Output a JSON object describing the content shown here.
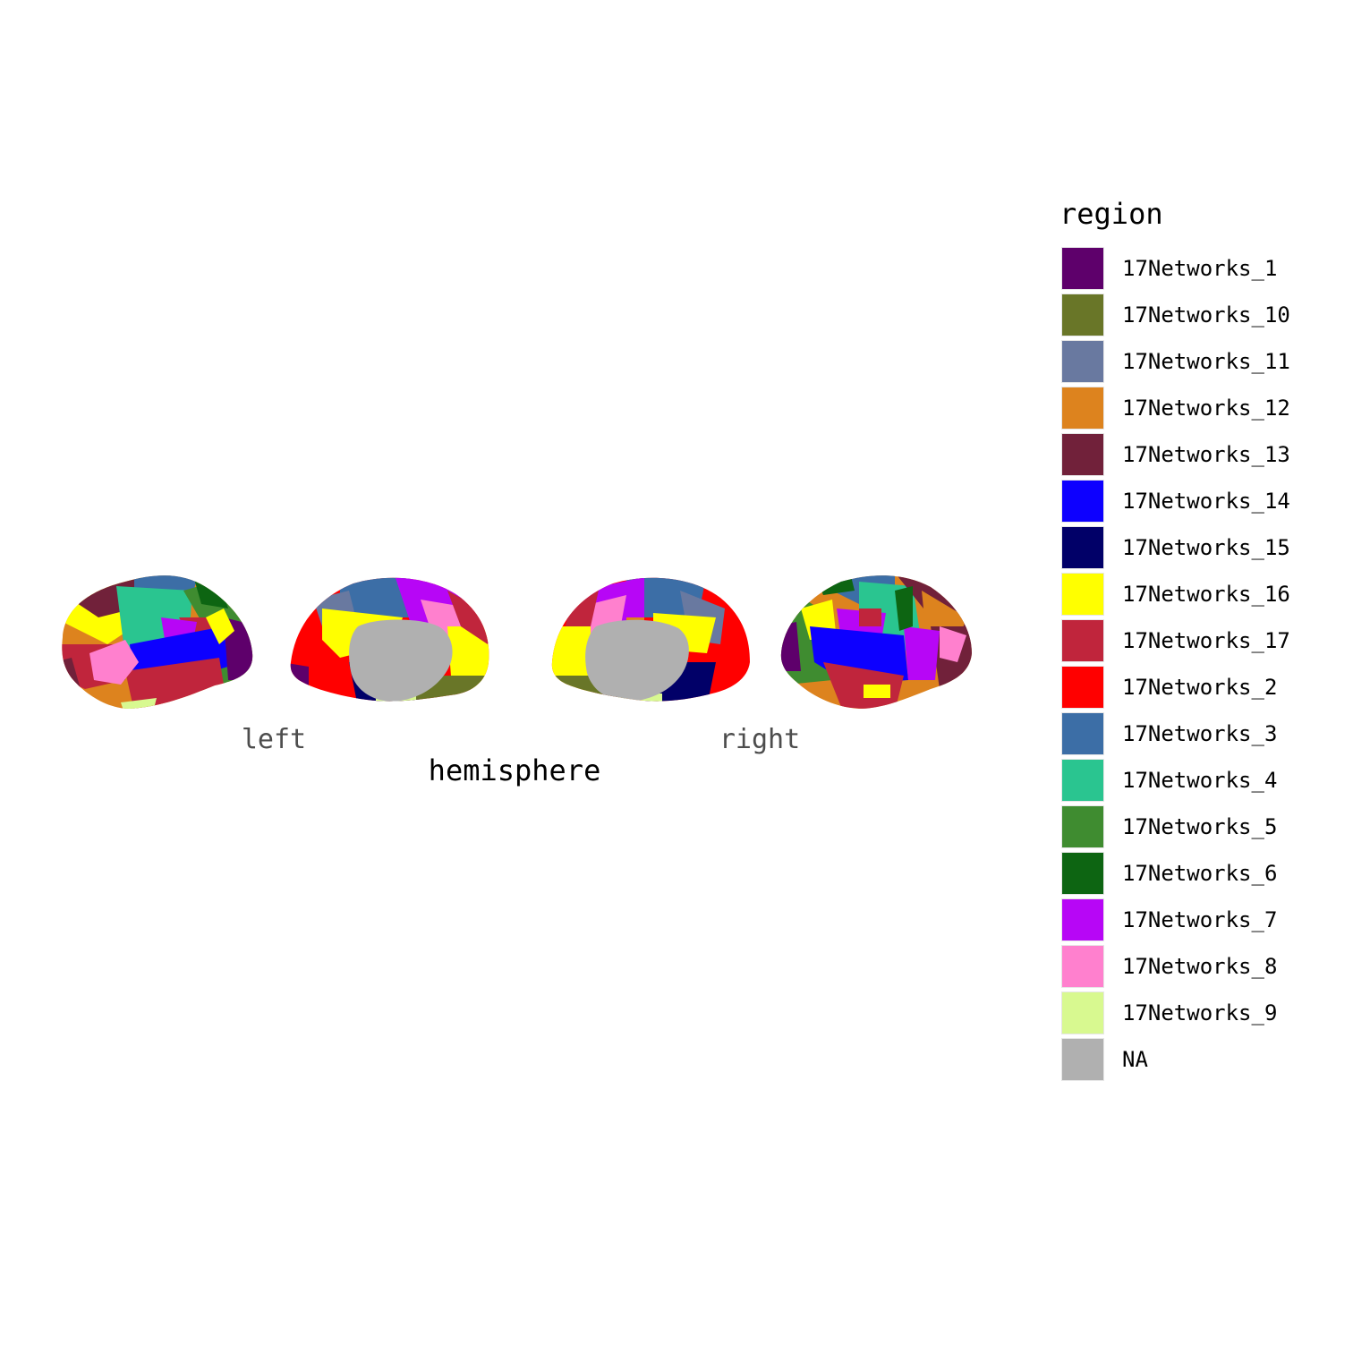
{
  "hemispheres": {
    "left_label": "left",
    "right_label": "right",
    "axis_title": "hemisphere"
  },
  "legend": {
    "title": "region",
    "items": [
      {
        "label": "17Networks_1",
        "color": "#5e006b"
      },
      {
        "label": "17Networks_10",
        "color": "#697628"
      },
      {
        "label": "17Networks_11",
        "color": "#6979a0"
      },
      {
        "label": "17Networks_12",
        "color": "#dd831e"
      },
      {
        "label": "17Networks_13",
        "color": "#71213a"
      },
      {
        "label": "17Networks_14",
        "color": "#0d00ff"
      },
      {
        "label": "17Networks_15",
        "color": "#010068"
      },
      {
        "label": "17Networks_16",
        "color": "#ffff00"
      },
      {
        "label": "17Networks_17",
        "color": "#c0253c"
      },
      {
        "label": "17Networks_2",
        "color": "#ff0000"
      },
      {
        "label": "17Networks_3",
        "color": "#3c6ea6"
      },
      {
        "label": "17Networks_4",
        "color": "#2ac590"
      },
      {
        "label": "17Networks_5",
        "color": "#3f8c30"
      },
      {
        "label": "17Networks_6",
        "color": "#0d6512"
      },
      {
        "label": "17Networks_7",
        "color": "#b706f6"
      },
      {
        "label": "17Networks_8",
        "color": "#ff80ce"
      },
      {
        "label": "17Networks_9",
        "color": "#d8f990"
      },
      {
        "label": "NA",
        "color": "#b0b0b0"
      }
    ]
  }
}
